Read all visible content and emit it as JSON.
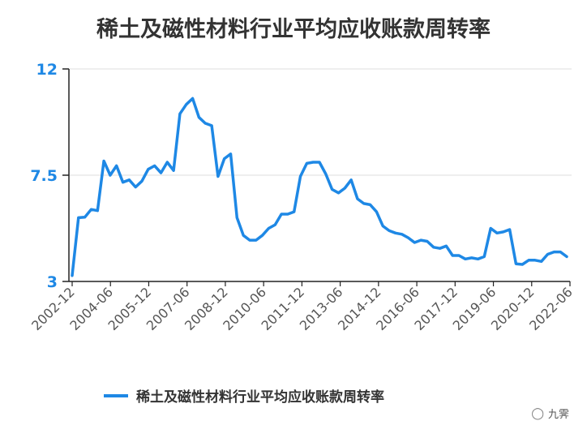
{
  "chart_data": {
    "type": "line",
    "title": "稀土及磁性材料行业平均应收账款周转率",
    "xlabel": "",
    "ylabel": "",
    "ylim": [
      3,
      12
    ],
    "yticks": [
      "3",
      "7.5",
      "12"
    ],
    "xticks": [
      "2002-12",
      "2004-06",
      "2005-12",
      "2007-06",
      "2008-12",
      "2010-06",
      "2011-12",
      "2013-06",
      "2014-12",
      "2016-06",
      "2017-12",
      "2019-06",
      "2020-12",
      "2022-06"
    ],
    "grid": "horizontal",
    "legend_position": "bottom",
    "series": [
      {
        "name": "稀土及磁性材料行业平均应收账款周转率",
        "color": "#1E88E5",
        "values": [
          3.25,
          5.7,
          5.72,
          6.05,
          6.0,
          8.1,
          7.5,
          7.9,
          7.2,
          7.3,
          7.0,
          7.25,
          7.75,
          7.9,
          7.6,
          8.05,
          7.7,
          10.1,
          10.5,
          10.75,
          9.95,
          9.7,
          9.6,
          7.45,
          8.2,
          8.4,
          5.7,
          4.95,
          4.75,
          4.75,
          4.95,
          5.25,
          5.4,
          5.85,
          5.85,
          5.95,
          7.45,
          8.0,
          8.05,
          8.05,
          7.55,
          6.9,
          6.75,
          6.95,
          7.3,
          6.5,
          6.3,
          6.25,
          5.95,
          5.35,
          5.15,
          5.05,
          5.0,
          4.85,
          4.65,
          4.75,
          4.7,
          4.45,
          4.4,
          4.5,
          4.1,
          4.1,
          3.95,
          4.0,
          3.95,
          4.05,
          5.25,
          5.05,
          5.1,
          5.2,
          3.75,
          3.72,
          3.9,
          3.9,
          3.85,
          4.15,
          4.25,
          4.25,
          4.05
        ]
      }
    ]
  },
  "legend": {
    "label": "稀土及磁性材料行业平均应收账款周转率"
  },
  "watermark": {
    "text": "九霁",
    "icon": "wechat-icon"
  }
}
